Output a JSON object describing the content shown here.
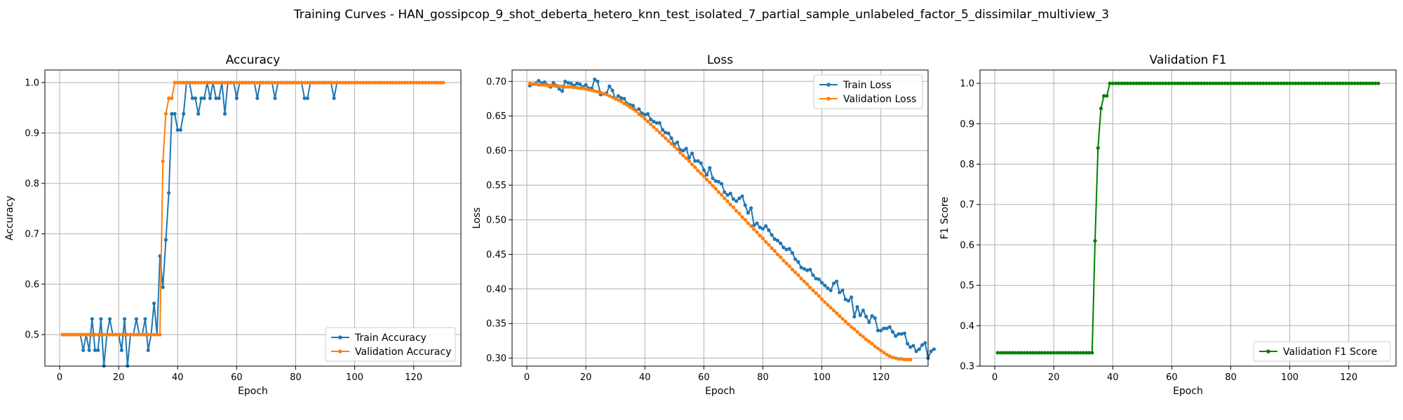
{
  "figure": {
    "title": "Training Curves - HAN_gossipcop_9_shot_deberta_hetero_knn_test_isolated_7_partial_sample_unlabeled_factor_5_dissimilar_multiview_3"
  },
  "colors": {
    "train": "#1f77b4",
    "validation": "#ff7f0e",
    "f1": "#008000"
  },
  "chart_data": [
    {
      "type": "line",
      "title": "Accuracy",
      "xlabel": "Epoch",
      "ylabel": "Accuracy",
      "xlim": [
        -5,
        136
      ],
      "ylim": [
        0.4375,
        1.025
      ],
      "xticks": [
        0,
        20,
        40,
        60,
        80,
        100,
        120
      ],
      "yticks": [
        0.5,
        0.6,
        0.7,
        0.8,
        0.9,
        1.0
      ],
      "tick_decimals": 1,
      "legend": "lower-right",
      "grid": true,
      "series": [
        {
          "name": "Train Accuracy",
          "color": "#1f77b4",
          "y": [
            0.5,
            0.5,
            0.5,
            0.5,
            0.5,
            0.5,
            0.5,
            0.469,
            0.5,
            0.469,
            0.531,
            0.469,
            0.469,
            0.531,
            0.438,
            0.5,
            0.531,
            0.5,
            0.5,
            0.5,
            0.469,
            0.531,
            0.438,
            0.5,
            0.5,
            0.531,
            0.5,
            0.5,
            0.531,
            0.469,
            0.5,
            0.562,
            0.5,
            0.656,
            0.594,
            0.688,
            0.781,
            0.938,
            0.938,
            0.906,
            0.906,
            0.938,
            1.0,
            1.0,
            0.969,
            0.969,
            0.938,
            0.969,
            0.969,
            1.0,
            0.969,
            1.0,
            0.969,
            0.969,
            1.0,
            0.938,
            1.0,
            1.0,
            1.0,
            0.969,
            1.0,
            1.0,
            1.0,
            1.0,
            1.0,
            1.0,
            0.969,
            1.0,
            1.0,
            1.0,
            1.0,
            1.0,
            0.969,
            1.0,
            1.0,
            1.0,
            1.0,
            1.0,
            1.0,
            1.0,
            1.0,
            1.0,
            0.969,
            0.969,
            1.0,
            1.0,
            1.0,
            1.0,
            1.0,
            1.0,
            1.0,
            1.0,
            0.969,
            1.0
          ]
        },
        {
          "name": "Validation Accuracy",
          "color": "#ff7f0e",
          "y": [
            0.5,
            0.5,
            0.5,
            0.5,
            0.5,
            0.5,
            0.5,
            0.5,
            0.5,
            0.5,
            0.5,
            0.5,
            0.5,
            0.5,
            0.5,
            0.5,
            0.5,
            0.5,
            0.5,
            0.5,
            0.5,
            0.5,
            0.5,
            0.5,
            0.5,
            0.5,
            0.5,
            0.5,
            0.5,
            0.5,
            0.5,
            0.5,
            0.5,
            0.5,
            0.844,
            0.938,
            0.969,
            0.969,
            1.0,
            1.0,
            1.0,
            1.0,
            1.0,
            1.0,
            1.0,
            1.0,
            1.0,
            1.0,
            1.0,
            1.0,
            1.0,
            1.0,
            1.0,
            1.0,
            1.0,
            1.0,
            1.0,
            1.0,
            1.0,
            1.0,
            1.0,
            1.0,
            1.0,
            1.0,
            1.0,
            1.0,
            1.0,
            1.0,
            1.0,
            1.0,
            1.0,
            1.0,
            1.0,
            1.0,
            1.0,
            1.0,
            1.0,
            1.0,
            1.0,
            1.0,
            1.0,
            1.0,
            1.0,
            1.0,
            1.0,
            1.0,
            1.0,
            1.0,
            1.0,
            1.0,
            1.0,
            1.0,
            1.0,
            1.0,
            1.0,
            1.0,
            1.0,
            1.0,
            1.0,
            1.0,
            1.0,
            1.0,
            1.0,
            1.0,
            1.0,
            1.0,
            1.0,
            1.0,
            1.0,
            1.0,
            1.0,
            1.0,
            1.0,
            1.0,
            1.0,
            1.0,
            1.0,
            1.0,
            1.0,
            1.0,
            1.0,
            1.0,
            1.0,
            1.0,
            1.0,
            1.0,
            1.0,
            1.0,
            1.0,
            1.0
          ]
        }
      ]
    },
    {
      "type": "line",
      "title": "Loss",
      "xlabel": "Epoch",
      "ylabel": "Loss",
      "xlim": [
        -5,
        136
      ],
      "ylim": [
        0.2885,
        0.7165
      ],
      "xticks": [
        0,
        20,
        40,
        60,
        80,
        100,
        120
      ],
      "yticks": [
        0.3,
        0.35,
        0.4,
        0.45,
        0.5,
        0.55,
        0.6,
        0.65,
        0.7
      ],
      "tick_decimals": 2,
      "legend": "upper-right",
      "grid": true,
      "series": [
        {
          "name": "Train Loss",
          "color": "#1f77b4",
          "y": [
            0.694,
            0.696,
            0.697,
            0.701,
            0.697,
            0.699,
            0.695,
            0.692,
            0.698,
            0.694,
            0.689,
            0.686,
            0.7,
            0.698,
            0.697,
            0.694,
            0.697,
            0.696,
            0.692,
            0.695,
            0.69,
            0.69,
            0.703,
            0.7,
            0.681,
            0.682,
            0.683,
            0.693,
            0.687,
            0.675,
            0.679,
            0.676,
            0.675,
            0.668,
            0.666,
            0.665,
            0.658,
            0.66,
            0.654,
            0.652,
            0.653,
            0.645,
            0.642,
            0.64,
            0.64,
            0.63,
            0.626,
            0.625,
            0.618,
            0.609,
            0.612,
            0.601,
            0.6,
            0.603,
            0.59,
            0.596,
            0.585,
            0.585,
            0.582,
            0.572,
            0.565,
            0.575,
            0.56,
            0.556,
            0.555,
            0.552,
            0.54,
            0.536,
            0.538,
            0.53,
            0.527,
            0.531,
            0.534,
            0.521,
            0.51,
            0.517,
            0.492,
            0.495,
            0.489,
            0.487,
            0.491,
            0.485,
            0.478,
            0.472,
            0.47,
            0.466,
            0.46,
            0.457,
            0.458,
            0.452,
            0.443,
            0.439,
            0.431,
            0.429,
            0.427,
            0.428,
            0.42,
            0.415,
            0.414,
            0.409,
            0.405,
            0.401,
            0.398,
            0.408,
            0.411,
            0.395,
            0.398,
            0.385,
            0.383,
            0.388,
            0.36,
            0.374,
            0.362,
            0.369,
            0.36,
            0.352,
            0.361,
            0.358,
            0.34,
            0.34,
            0.343,
            0.343,
            0.345,
            0.338,
            0.332,
            0.335,
            0.335,
            0.336,
            0.321,
            0.316,
            0.318,
            0.31,
            0.313,
            0.319,
            0.322,
            0.3,
            0.31,
            0.313
          ]
        },
        {
          "name": "Validation Loss",
          "color": "#ff7f0e",
          "y": [
            0.697,
            0.696,
            0.696,
            0.695,
            0.695,
            0.695,
            0.694,
            0.694,
            0.694,
            0.693,
            0.693,
            0.693,
            0.692,
            0.692,
            0.692,
            0.691,
            0.691,
            0.69,
            0.69,
            0.689,
            0.688,
            0.687,
            0.686,
            0.685,
            0.684,
            0.682,
            0.681,
            0.679,
            0.677,
            0.675,
            0.673,
            0.671,
            0.668,
            0.666,
            0.663,
            0.66,
            0.657,
            0.653,
            0.65,
            0.646,
            0.642,
            0.638,
            0.634,
            0.63,
            0.626,
            0.622,
            0.618,
            0.614,
            0.61,
            0.606,
            0.602,
            0.597,
            0.593,
            0.589,
            0.585,
            0.58,
            0.576,
            0.571,
            0.567,
            0.563,
            0.558,
            0.554,
            0.549,
            0.545,
            0.54,
            0.536,
            0.531,
            0.527,
            0.522,
            0.518,
            0.513,
            0.509,
            0.504,
            0.5,
            0.495,
            0.491,
            0.486,
            0.482,
            0.477,
            0.473,
            0.468,
            0.464,
            0.459,
            0.455,
            0.45,
            0.446,
            0.441,
            0.437,
            0.433,
            0.428,
            0.424,
            0.42,
            0.415,
            0.411,
            0.407,
            0.402,
            0.398,
            0.394,
            0.39,
            0.385,
            0.381,
            0.377,
            0.373,
            0.369,
            0.365,
            0.361,
            0.357,
            0.353,
            0.349,
            0.345,
            0.342,
            0.338,
            0.334,
            0.331,
            0.327,
            0.324,
            0.321,
            0.317,
            0.314,
            0.311,
            0.308,
            0.305,
            0.303,
            0.301,
            0.3,
            0.299,
            0.299,
            0.298,
            0.298,
            0.298
          ]
        }
      ]
    },
    {
      "type": "line",
      "title": "Validation F1",
      "xlabel": "Epoch",
      "ylabel": "F1 Score",
      "xlim": [
        -5,
        136
      ],
      "ylim": [
        0.3,
        1.033
      ],
      "xticks": [
        0,
        20,
        40,
        60,
        80,
        100,
        120
      ],
      "yticks": [
        0.3,
        0.4,
        0.5,
        0.6,
        0.7,
        0.8,
        0.9,
        1.0
      ],
      "tick_decimals": 1,
      "legend": "lower-right",
      "grid": true,
      "series": [
        {
          "name": "Validation F1 Score",
          "color": "#008000",
          "y": [
            0.333,
            0.333,
            0.333,
            0.333,
            0.333,
            0.333,
            0.333,
            0.333,
            0.333,
            0.333,
            0.333,
            0.333,
            0.333,
            0.333,
            0.333,
            0.333,
            0.333,
            0.333,
            0.333,
            0.333,
            0.333,
            0.333,
            0.333,
            0.333,
            0.333,
            0.333,
            0.333,
            0.333,
            0.333,
            0.333,
            0.333,
            0.333,
            0.333,
            0.61,
            0.84,
            0.938,
            0.969,
            0.969,
            1.0,
            1.0,
            1.0,
            1.0,
            1.0,
            1.0,
            1.0,
            1.0,
            1.0,
            1.0,
            1.0,
            1.0,
            1.0,
            1.0,
            1.0,
            1.0,
            1.0,
            1.0,
            1.0,
            1.0,
            1.0,
            1.0,
            1.0,
            1.0,
            1.0,
            1.0,
            1.0,
            1.0,
            1.0,
            1.0,
            1.0,
            1.0,
            1.0,
            1.0,
            1.0,
            1.0,
            1.0,
            1.0,
            1.0,
            1.0,
            1.0,
            1.0,
            1.0,
            1.0,
            1.0,
            1.0,
            1.0,
            1.0,
            1.0,
            1.0,
            1.0,
            1.0,
            1.0,
            1.0,
            1.0,
            1.0,
            1.0,
            1.0,
            1.0,
            1.0,
            1.0,
            1.0,
            1.0,
            1.0,
            1.0,
            1.0,
            1.0,
            1.0,
            1.0,
            1.0,
            1.0,
            1.0,
            1.0,
            1.0,
            1.0,
            1.0,
            1.0,
            1.0,
            1.0,
            1.0,
            1.0,
            1.0,
            1.0,
            1.0,
            1.0,
            1.0,
            1.0,
            1.0,
            1.0,
            1.0,
            1.0,
            1.0
          ]
        }
      ]
    }
  ]
}
